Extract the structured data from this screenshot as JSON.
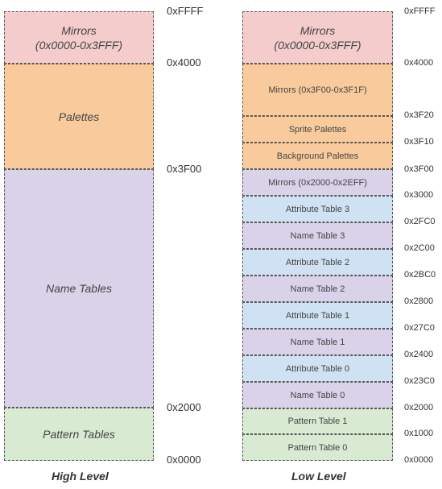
{
  "high_level": {
    "caption": "High Level",
    "mirrors_line1": "Mirrors",
    "mirrors_line2": "(0x0000-0x3FFF)",
    "palettes": "Palettes",
    "name_tables": "Name Tables",
    "pattern_tables": "Pattern Tables",
    "addresses": [
      "0xFFFF",
      "0x4000",
      "0x3F00",
      "0x2000",
      "0x0000"
    ]
  },
  "low_level": {
    "caption": "Low Level",
    "mirrors_line1": "Mirrors",
    "mirrors_line2": "(0x0000-0x3FFF)",
    "blocks": [
      "Mirrors (0x3F00-0x3F1F)",
      "Sprite Palettes",
      "Background Palettes",
      "Mirrors (0x2000-0x2EFF)",
      "Attribute Table 3",
      "Name Table 3",
      "Attribute Table 2",
      "Name Table 2",
      "Attribute Table 1",
      "Name Table 1",
      "Attribute Table 0",
      "Name Table 0",
      "Pattern Table 1",
      "Pattern Table 0"
    ],
    "addresses": [
      "0xFFFF",
      "0x4000",
      "0x3F20",
      "0x3F10",
      "0x3F00",
      "0x3000",
      "0x2FC0",
      "0x2C00",
      "0x2BC0",
      "0x2800",
      "0x27C0",
      "0x2400",
      "0x23C0",
      "0x2000",
      "0x1000",
      "0x0000"
    ]
  },
  "colors": {
    "mirrors": "#f4cccc",
    "palettes": "#f9cb9c",
    "name_tables": "#d9d2e9",
    "attribute_tables": "#cfe2f3",
    "pattern_tables": "#d9ead3"
  }
}
